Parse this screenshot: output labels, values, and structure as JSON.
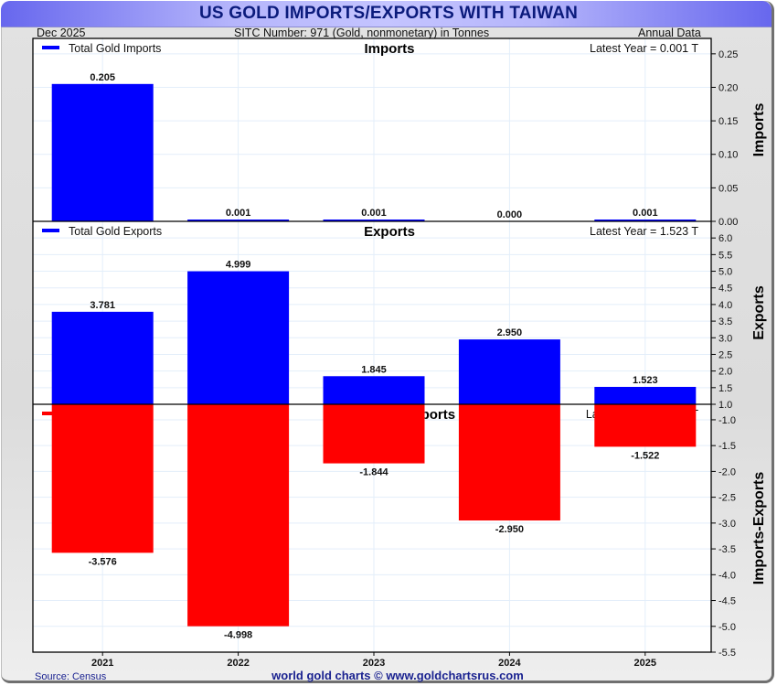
{
  "header": {
    "title": "US GOLD IMPORTS/EXPORTS WITH TAIWAN",
    "date": "Dec  2025",
    "subtitle": "SITC Number: 971 (Gold, nonmonetary) in Tonnes",
    "frequency": "Annual Data"
  },
  "footer": {
    "source": "Source: Census",
    "credit": "world gold charts © www.goldchartsrus.com"
  },
  "colors": {
    "imports": "#0000ff",
    "exports": "#0000ff",
    "net": "#ff0000",
    "grid": "#e3eefa",
    "title_text": "#0b1b7c"
  },
  "chart_data": [
    {
      "type": "bar",
      "panel": "imports",
      "title": "Imports",
      "ylabel": "Imports",
      "legend": "Total Gold Imports",
      "legend_position": "top-left",
      "annotation": "Latest Year = 0.001 T",
      "categories": [
        "2021",
        "2022",
        "2023",
        "2024",
        "2025"
      ],
      "values": [
        0.205,
        0.001,
        0.001,
        0.0,
        0.001
      ],
      "labels": [
        "0.205",
        "0.001",
        "0.001",
        "0.000",
        "0.001"
      ],
      "ylim": [
        0,
        0.273
      ],
      "yticks": [
        0.0,
        0.05,
        0.1,
        0.15,
        0.2,
        0.25
      ],
      "ytick_labels": [
        "0.00",
        "0.05",
        "0.10",
        "0.15",
        "0.20",
        "0.25"
      ],
      "grid": true
    },
    {
      "type": "bar",
      "panel": "exports",
      "title": "Exports",
      "ylabel": "Exports",
      "legend": "Total Gold Exports",
      "legend_position": "top-left",
      "annotation": "Latest Year = 1.523 T",
      "categories": [
        "2021",
        "2022",
        "2023",
        "2024",
        "2025"
      ],
      "values": [
        3.781,
        4.999,
        1.845,
        2.95,
        1.523
      ],
      "labels": [
        "3.781",
        "4.999",
        "1.845",
        "2.950",
        "1.523"
      ],
      "ylim": [
        1.0,
        6.5
      ],
      "yticks": [
        1.0,
        1.5,
        2.0,
        2.5,
        3.0,
        3.5,
        4.0,
        4.5,
        5.0,
        5.5,
        6.0
      ],
      "ytick_labels": [
        "1.0",
        "1.5",
        "2.0",
        "2.5",
        "3.0",
        "3.5",
        "4.0",
        "4.5",
        "5.0",
        "5.5",
        "6.0"
      ],
      "grid": true
    },
    {
      "type": "bar",
      "panel": "net",
      "title": "Net Imports-Exports",
      "ylabel": "Imports-Exports",
      "legend": "Imports-Exports",
      "legend_position": "top-left",
      "annotation": "Latest Year = -1.522 T",
      "categories": [
        "2021",
        "2022",
        "2023",
        "2024",
        "2025"
      ],
      "values": [
        -3.576,
        -4.998,
        -1.844,
        -2.95,
        -1.522
      ],
      "labels": [
        "-3.576",
        "-4.998",
        "-1.844",
        "-2.950",
        "-1.522"
      ],
      "ylim": [
        -5.5,
        -0.7
      ],
      "yticks": [
        -1.0,
        -1.5,
        -2.0,
        -2.5,
        -3.0,
        -3.5,
        -4.0,
        -4.5,
        -5.0,
        -5.5
      ],
      "ytick_labels": [
        "-1.0",
        "-1.5",
        "-2.0",
        "-2.5",
        "-3.0",
        "-3.5",
        "-4.0",
        "-4.5",
        "-5.0",
        "-5.5"
      ],
      "grid": true
    }
  ]
}
